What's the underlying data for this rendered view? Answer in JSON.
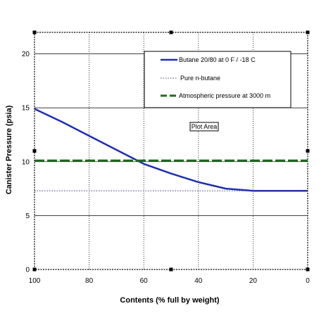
{
  "chart_data": {
    "type": "line",
    "xlabel": "Contents (% full by weight)",
    "ylabel": "Canister Pressure (psia)",
    "xlim": [
      100,
      0
    ],
    "ylim": [
      0,
      22
    ],
    "x_ticks": [
      "100",
      "80",
      "60",
      "40",
      "20",
      "0"
    ],
    "y_ticks": [
      "0",
      "5",
      "10",
      "15",
      "20"
    ],
    "grid": true,
    "legend_position": "top-right",
    "annotation": "Plot Area",
    "series": [
      {
        "name": "Butane 20/80 at 0 F / -18 C",
        "color": "#1f2fb0",
        "style": "solid",
        "x": [
          100,
          90,
          80,
          70,
          60,
          50,
          40,
          35,
          30,
          25,
          20,
          10,
          0
        ],
        "y": [
          14.9,
          13.7,
          12.4,
          11.1,
          9.8,
          8.9,
          8.1,
          7.8,
          7.5,
          7.4,
          7.3,
          7.3,
          7.3
        ]
      },
      {
        "name": "Pure n-butane",
        "color": "#3a3a8a",
        "style": "dotted",
        "x": [
          100,
          0
        ],
        "y": [
          7.3,
          7.3
        ]
      },
      {
        "name": "Atmospheric pressure at 3000 m",
        "color": "#1e6b1e",
        "style": "dashed",
        "x": [
          100,
          0
        ],
        "y": [
          10.1,
          10.1
        ]
      }
    ]
  }
}
